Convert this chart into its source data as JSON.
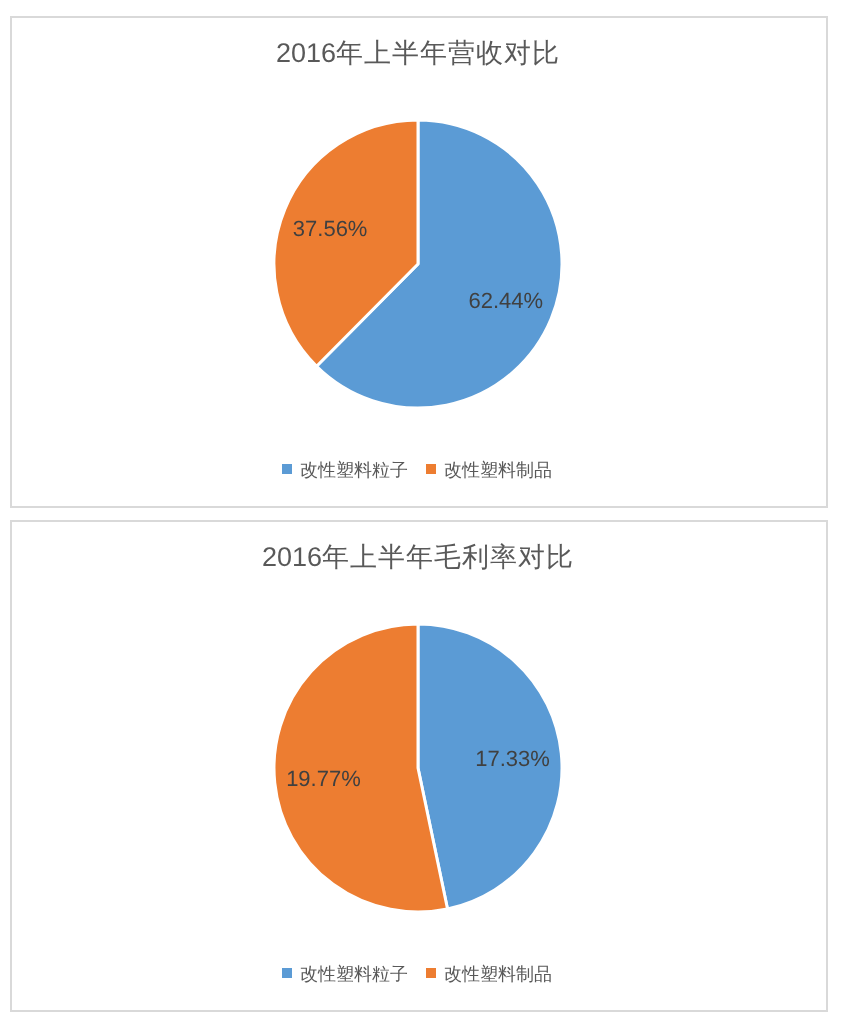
{
  "chart_data": [
    {
      "type": "pie",
      "title": "2016年上半年营收对比",
      "categories": [
        "改性塑料粒子",
        "改性塑料制品"
      ],
      "values": [
        62.44,
        37.56
      ],
      "colors": [
        "#5b9bd5",
        "#ed7d31"
      ],
      "value_labels": [
        "62.44%",
        "37.56%"
      ],
      "legend": "bottom"
    },
    {
      "type": "pie",
      "title": "2016年上半年毛利率对比",
      "categories": [
        "改性塑料粒子",
        "改性塑料制品"
      ],
      "values": [
        17.33,
        19.77
      ],
      "colors": [
        "#5b9bd5",
        "#ed7d31"
      ],
      "value_labels": [
        "17.33%",
        "19.77%"
      ],
      "legend": "bottom"
    }
  ]
}
